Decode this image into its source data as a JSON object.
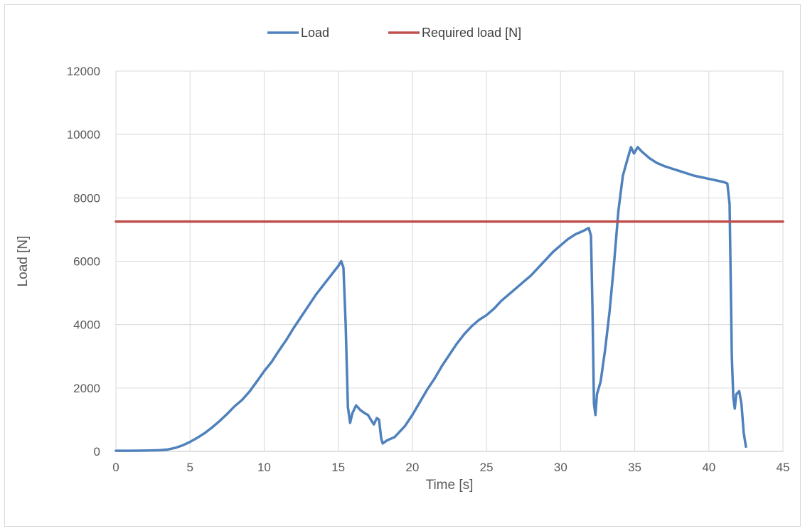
{
  "chart_data": {
    "type": "line",
    "title": "",
    "xlabel": "Time [s]",
    "ylabel": "Load [N]",
    "xlim": [
      0,
      45
    ],
    "ylim": [
      0,
      12000
    ],
    "x_ticks": [
      0,
      5,
      10,
      15,
      20,
      25,
      30,
      35,
      40,
      45
    ],
    "y_ticks": [
      0,
      2000,
      4000,
      6000,
      8000,
      10000,
      12000
    ],
    "x_tick_labels": [
      "0",
      "5",
      "10",
      "15",
      "20",
      "25",
      "30",
      "35",
      "40",
      "45"
    ],
    "y_tick_labels": [
      "0",
      "2000",
      "4000",
      "6000",
      "8000",
      "10000",
      "12000"
    ],
    "grid": true,
    "legend_position": "top",
    "series": [
      {
        "name": "Load",
        "color": "#4f81bd",
        "points": [
          [
            0,
            20
          ],
          [
            1,
            20
          ],
          [
            2,
            25
          ],
          [
            2.5,
            30
          ],
          [
            3,
            40
          ],
          [
            3.5,
            60
          ],
          [
            4,
            110
          ],
          [
            4.5,
            190
          ],
          [
            5,
            300
          ],
          [
            5.5,
            430
          ],
          [
            6,
            580
          ],
          [
            6.5,
            760
          ],
          [
            7,
            960
          ],
          [
            7.5,
            1180
          ],
          [
            8,
            1420
          ],
          [
            8.5,
            1620
          ],
          [
            9,
            1880
          ],
          [
            9.5,
            2200
          ],
          [
            10,
            2530
          ],
          [
            10.5,
            2820
          ],
          [
            11,
            3180
          ],
          [
            11.5,
            3520
          ],
          [
            12,
            3900
          ],
          [
            12.5,
            4250
          ],
          [
            13,
            4600
          ],
          [
            13.5,
            4950
          ],
          [
            14,
            5250
          ],
          [
            14.5,
            5550
          ],
          [
            15,
            5850
          ],
          [
            15.2,
            6000
          ],
          [
            15.35,
            5800
          ],
          [
            15.5,
            4000
          ],
          [
            15.65,
            1400
          ],
          [
            15.8,
            900
          ],
          [
            15.95,
            1200
          ],
          [
            16.2,
            1450
          ],
          [
            16.5,
            1300
          ],
          [
            16.8,
            1200
          ],
          [
            17,
            1150
          ],
          [
            17.2,
            1000
          ],
          [
            17.4,
            850
          ],
          [
            17.6,
            1050
          ],
          [
            17.75,
            1000
          ],
          [
            17.9,
            400
          ],
          [
            18,
            250
          ],
          [
            18.3,
            350
          ],
          [
            18.8,
            450
          ],
          [
            19.5,
            800
          ],
          [
            20,
            1150
          ],
          [
            20.5,
            1550
          ],
          [
            21,
            1950
          ],
          [
            21.5,
            2300
          ],
          [
            22,
            2700
          ],
          [
            22.5,
            3050
          ],
          [
            23,
            3400
          ],
          [
            23.5,
            3700
          ],
          [
            24,
            3950
          ],
          [
            24.5,
            4150
          ],
          [
            25,
            4300
          ],
          [
            25.5,
            4500
          ],
          [
            26,
            4750
          ],
          [
            26.5,
            4950
          ],
          [
            27,
            5150
          ],
          [
            27.5,
            5350
          ],
          [
            28,
            5550
          ],
          [
            28.5,
            5800
          ],
          [
            29,
            6050
          ],
          [
            29.5,
            6300
          ],
          [
            30,
            6500
          ],
          [
            30.5,
            6700
          ],
          [
            31,
            6850
          ],
          [
            31.5,
            6950
          ],
          [
            31.9,
            7050
          ],
          [
            32.05,
            6800
          ],
          [
            32.15,
            4500
          ],
          [
            32.25,
            1500
          ],
          [
            32.35,
            1150
          ],
          [
            32.45,
            1800
          ],
          [
            32.7,
            2200
          ],
          [
            33,
            3200
          ],
          [
            33.3,
            4400
          ],
          [
            33.6,
            5900
          ],
          [
            33.9,
            7600
          ],
          [
            34.2,
            8700
          ],
          [
            34.5,
            9200
          ],
          [
            34.75,
            9600
          ],
          [
            34.95,
            9400
          ],
          [
            35.2,
            9600
          ],
          [
            35.5,
            9450
          ],
          [
            36,
            9250
          ],
          [
            36.5,
            9100
          ],
          [
            37,
            9000
          ],
          [
            38,
            8850
          ],
          [
            39,
            8700
          ],
          [
            40,
            8600
          ],
          [
            41,
            8500
          ],
          [
            41.25,
            8450
          ],
          [
            41.4,
            7800
          ],
          [
            41.55,
            3000
          ],
          [
            41.65,
            1700
          ],
          [
            41.75,
            1350
          ],
          [
            41.85,
            1800
          ],
          [
            42.05,
            1900
          ],
          [
            42.2,
            1500
          ],
          [
            42.35,
            600
          ],
          [
            42.5,
            150
          ]
        ]
      },
      {
        "name": "Required load [N]",
        "color": "#c0504d",
        "points": [
          [
            0,
            7250
          ],
          [
            45,
            7250
          ]
        ]
      }
    ]
  }
}
